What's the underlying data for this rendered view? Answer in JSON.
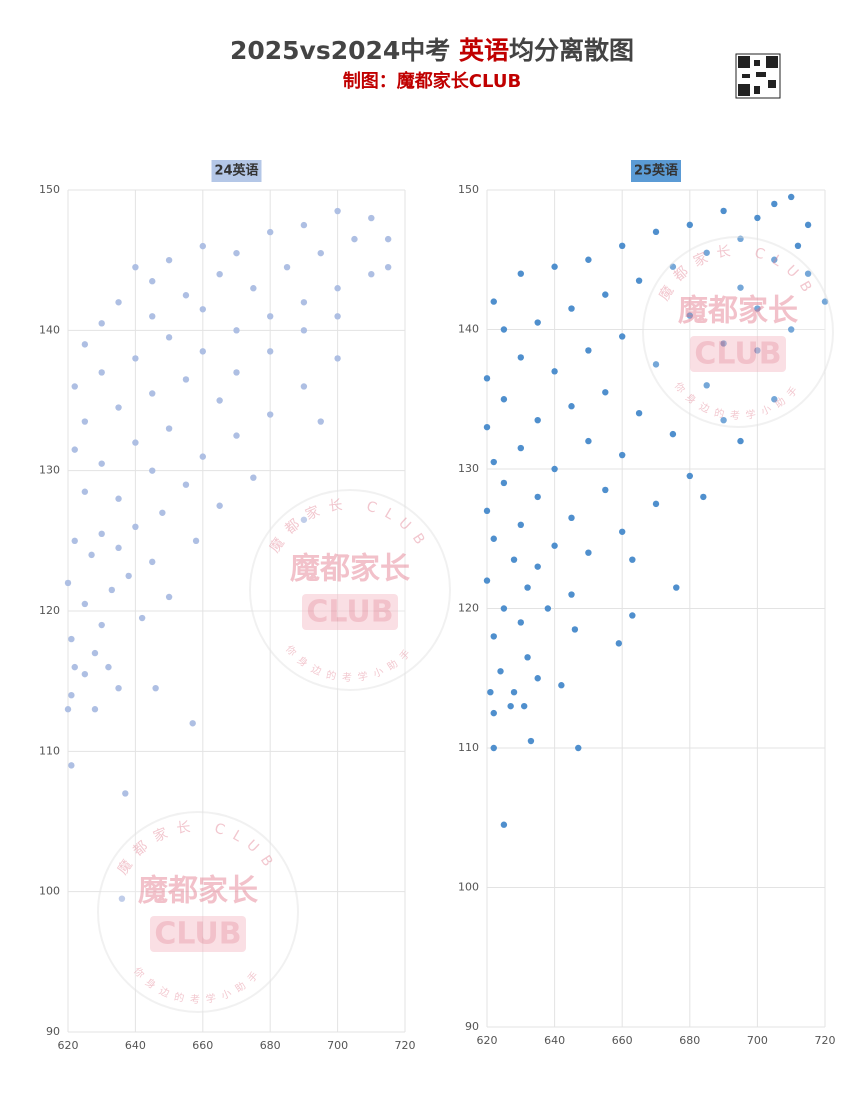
{
  "header": {
    "title_before": "2025vs2024中考 ",
    "title_highlight": "英语",
    "title_after": "均分离散图",
    "subtitle": "制图：魔都家长CLUB"
  },
  "watermark": {
    "name": "魔都家长",
    "club": "CLUB",
    "ring_top": "魔都家长 CLUB",
    "ring_bottom": "你身边的考学小助手"
  },
  "chart_data": [
    {
      "type": "scatter",
      "title": "24英语",
      "color": "#aebfe3",
      "grid": true,
      "xlim": [
        620,
        720
      ],
      "xticks": [
        620,
        640,
        660,
        680,
        700,
        720
      ],
      "ylim": [
        90,
        150
      ],
      "yticks": [
        90,
        100,
        110,
        120,
        130,
        140,
        150
      ],
      "x": [
        700,
        710,
        690,
        680,
        705,
        715,
        660,
        670,
        695,
        650,
        640,
        685,
        710,
        665,
        645,
        675,
        700,
        655,
        690,
        635,
        715,
        660,
        680,
        645,
        700,
        630,
        670,
        690,
        650,
        625,
        660,
        680,
        640,
        700,
        670,
        630,
        655,
        690,
        622,
        645,
        665,
        635,
        680,
        625,
        650,
        670,
        640,
        695,
        622,
        660,
        630,
        645,
        675,
        655,
        625,
        635,
        665,
        648,
        690,
        640,
        630,
        658,
        622,
        635,
        627,
        645,
        638,
        620,
        633,
        650,
        625,
        642,
        630,
        621,
        628,
        632,
        622,
        625,
        635,
        646,
        621,
        628,
        620,
        657,
        621,
        637,
        636
      ],
      "y": [
        148.5,
        148,
        147.5,
        147,
        146.5,
        146.5,
        146,
        145.5,
        145.5,
        145,
        144.5,
        144.5,
        144,
        144,
        143.5,
        143,
        143,
        142.5,
        142,
        142,
        144.5,
        141.5,
        141,
        141,
        141,
        140.5,
        140,
        140,
        139.5,
        139,
        138.5,
        138.5,
        138,
        138,
        137,
        137,
        136.5,
        136,
        136,
        135.5,
        135,
        134.5,
        134,
        133.5,
        133,
        132.5,
        132,
        133.5,
        131.5,
        131,
        130.5,
        130,
        129.5,
        129,
        128.5,
        128,
        127.5,
        127,
        126.5,
        126,
        125.5,
        125,
        125,
        124.5,
        124,
        123.5,
        122.5,
        122,
        121.5,
        121,
        120.5,
        119.5,
        119,
        118,
        117,
        116,
        116,
        115.5,
        114.5,
        114.5,
        114,
        113,
        113,
        112,
        109,
        107,
        99.5
      ]
    },
    {
      "type": "scatter",
      "title": "25英语",
      "color": "#4f8fcd",
      "grid": true,
      "xlim": [
        620,
        720
      ],
      "xticks": [
        620,
        640,
        660,
        680,
        700,
        720
      ],
      "ylim": [
        90,
        150
      ],
      "yticks": [
        90,
        100,
        110,
        120,
        130,
        140,
        150
      ],
      "x": [
        705,
        710,
        690,
        700,
        715,
        680,
        670,
        695,
        712,
        660,
        685,
        650,
        705,
        675,
        640,
        715,
        630,
        665,
        695,
        655,
        720,
        622,
        700,
        645,
        680,
        635,
        710,
        625,
        660,
        690,
        650,
        700,
        630,
        670,
        640,
        620,
        685,
        655,
        625,
        705,
        645,
        665,
        635,
        690,
        620,
        675,
        650,
        630,
        660,
        622,
        640,
        680,
        625,
        655,
        635,
        670,
        620,
        645,
        630,
        660,
        622,
        640,
        650,
        628,
        635,
        663,
        620,
        632,
        645,
        625,
        638,
        663,
        630,
        622,
        646,
        659,
        632,
        624,
        635,
        628,
        621,
        642,
        631,
        627,
        622,
        633,
        622,
        647,
        625,
        676,
        684,
        695
      ],
      "y": [
        149,
        149.5,
        148.5,
        148,
        147.5,
        147.5,
        147,
        146.5,
        146,
        146,
        145.5,
        145,
        145,
        144.5,
        144.5,
        144,
        144,
        143.5,
        143,
        142.5,
        142,
        142,
        141.5,
        141.5,
        141,
        140.5,
        140,
        140,
        139.5,
        139,
        138.5,
        138.5,
        138,
        137.5,
        137,
        136.5,
        136,
        135.5,
        135,
        135,
        134.5,
        134,
        133.5,
        133.5,
        133,
        132.5,
        132,
        131.5,
        131,
        130.5,
        130,
        129.5,
        129,
        128.5,
        128,
        127.5,
        127,
        126.5,
        126,
        125.5,
        125,
        124.5,
        124,
        123.5,
        123,
        123.5,
        122,
        121.5,
        121,
        120,
        120,
        119.5,
        119,
        118,
        118.5,
        117.5,
        116.5,
        115.5,
        115,
        114,
        114,
        114.5,
        113,
        113,
        112.5,
        110.5,
        110,
        110,
        104.5,
        121.5,
        128,
        132
      ]
    }
  ]
}
